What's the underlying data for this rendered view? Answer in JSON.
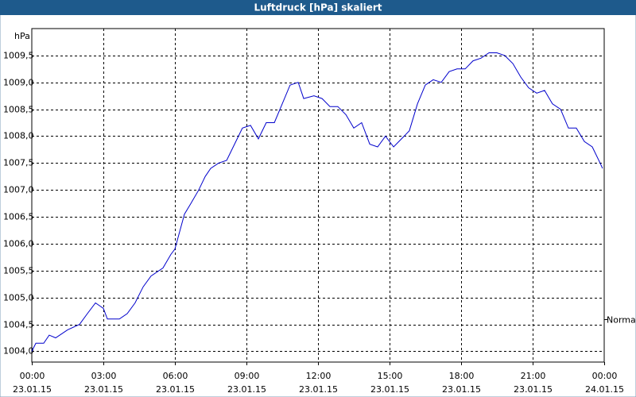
{
  "chart_data": {
    "type": "line",
    "title": "Luftdruck [hPa] skaliert",
    "y_unit": "hPa",
    "annotation": {
      "label": "Normal",
      "value": 1004.6
    },
    "xlim": [
      0,
      24
    ],
    "xticks": [
      {
        "value": 0,
        "label": "00:00",
        "date": "23.01.15"
      },
      {
        "value": 3,
        "label": "03:00",
        "date": "23.01.15"
      },
      {
        "value": 6,
        "label": "06:00",
        "date": "23.01.15"
      },
      {
        "value": 9,
        "label": "09:00",
        "date": "23.01.15"
      },
      {
        "value": 12,
        "label": "12:00",
        "date": "23.01.15"
      },
      {
        "value": 15,
        "label": "15:00",
        "date": "23.01.15"
      },
      {
        "value": 18,
        "label": "18:00",
        "date": "23.01.15"
      },
      {
        "value": 21,
        "label": "21:00",
        "date": "23.01.15"
      },
      {
        "value": 24,
        "label": "00:00",
        "date": "24.01.15"
      }
    ],
    "ylim": [
      1003.8,
      1010.0
    ],
    "yticks": [
      {
        "value": 1004.0,
        "label": "1004,0"
      },
      {
        "value": 1004.5,
        "label": "1004,5"
      },
      {
        "value": 1005.0,
        "label": "1005,0"
      },
      {
        "value": 1005.5,
        "label": "1005,5"
      },
      {
        "value": 1006.0,
        "label": "1006,0"
      },
      {
        "value": 1006.5,
        "label": "1006,5"
      },
      {
        "value": 1007.0,
        "label": "1007,0"
      },
      {
        "value": 1007.5,
        "label": "1007,5"
      },
      {
        "value": 1008.0,
        "label": "1008,0"
      },
      {
        "value": 1008.5,
        "label": "1008,5"
      },
      {
        "value": 1009.0,
        "label": "1009,0"
      },
      {
        "value": 1009.5,
        "label": "1009,5"
      }
    ],
    "grid": true,
    "color": "#0000cc",
    "x": [
      0,
      0.17,
      0.5,
      0.73,
      1.0,
      1.5,
      2.0,
      2.33,
      2.67,
      3.0,
      3.17,
      3.67,
      4.0,
      4.33,
      4.67,
      5.0,
      5.5,
      5.83,
      6.0,
      6.4,
      6.67,
      7.0,
      7.27,
      7.5,
      7.83,
      8.17,
      8.5,
      8.83,
      9.17,
      9.5,
      9.83,
      10.17,
      10.5,
      10.83,
      11.17,
      11.4,
      11.83,
      12.17,
      12.5,
      12.83,
      13.17,
      13.5,
      13.83,
      14.17,
      14.5,
      14.83,
      15.17,
      15.5,
      15.83,
      16.17,
      16.5,
      16.83,
      17.17,
      17.5,
      17.83,
      18.17,
      18.5,
      18.83,
      19.17,
      19.5,
      19.83,
      20.17,
      20.5,
      20.83,
      21.17,
      21.5,
      21.83,
      22.17,
      22.5,
      22.83,
      23.17,
      23.5,
      23.83,
      23.93
    ],
    "values": [
      1004.0,
      1004.15,
      1004.15,
      1004.3,
      1004.25,
      1004.4,
      1004.5,
      1004.7,
      1004.9,
      1004.8,
      1004.6,
      1004.6,
      1004.7,
      1004.9,
      1005.2,
      1005.4,
      1005.55,
      1005.8,
      1005.9,
      1006.55,
      1006.75,
      1007.0,
      1007.25,
      1007.4,
      1007.5,
      1007.55,
      1007.85,
      1008.15,
      1008.2,
      1007.95,
      1008.25,
      1008.25,
      1008.6,
      1008.95,
      1009.0,
      1008.7,
      1008.75,
      1008.7,
      1008.55,
      1008.55,
      1008.4,
      1008.15,
      1008.25,
      1007.85,
      1007.8,
      1008.0,
      1007.8,
      1007.95,
      1008.1,
      1008.6,
      1008.95,
      1009.05,
      1009.0,
      1009.2,
      1009.25,
      1009.25,
      1009.4,
      1009.45,
      1009.55,
      1009.55,
      1009.5,
      1009.35,
      1009.1,
      1008.9,
      1008.8,
      1008.85,
      1008.6,
      1008.5,
      1008.15,
      1008.15,
      1007.9,
      1007.8,
      1007.5,
      1007.4
    ]
  }
}
